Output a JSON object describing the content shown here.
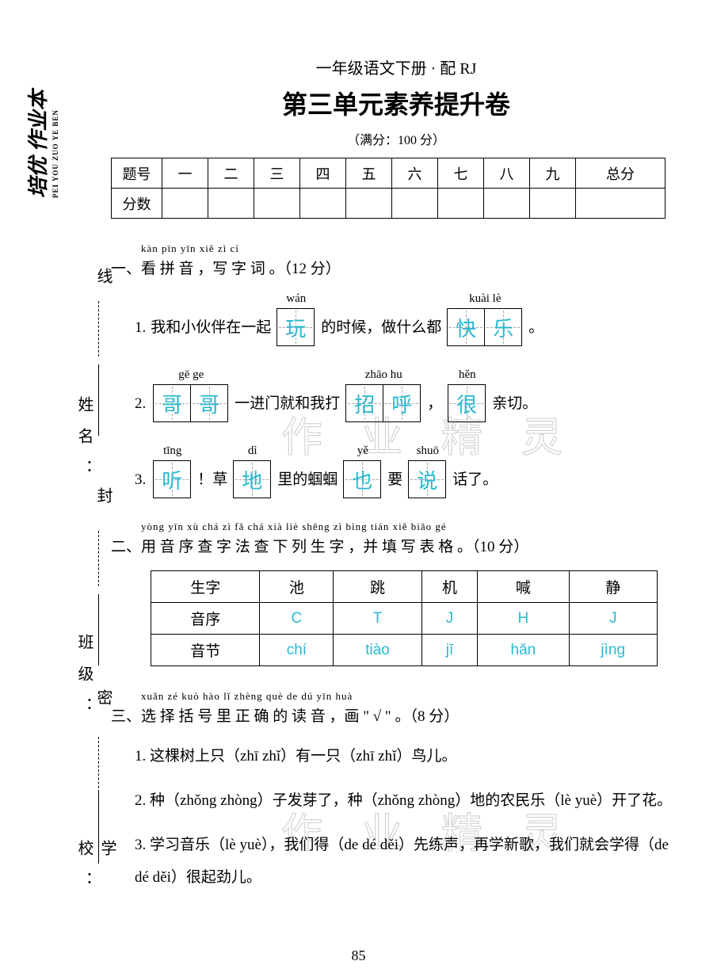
{
  "logo": {
    "main": "培优 作业本",
    "sub": "PEI YOU\nZUO YE BEN"
  },
  "header": {
    "sub": "一年级语文下册 · 配 RJ",
    "title": "第三单元素养提升卷",
    "score": "（满分：100 分）"
  },
  "score_table": {
    "row1": [
      "题号",
      "一",
      "二",
      "三",
      "四",
      "五",
      "六",
      "七",
      "八",
      "九",
      "总分"
    ],
    "row2_label": "分数"
  },
  "side_labels": {
    "school": "学校：",
    "class": "班级：",
    "name": "姓名：",
    "mi": "密",
    "feng": "封",
    "xian": "线"
  },
  "section1": {
    "pinyin": "kàn pīn yīn     xiě  zì  cí",
    "title": "一、看 拼 音 ，写 字 词 。（12 分）",
    "items": [
      {
        "num": "1.",
        "parts": [
          {
            "type": "text",
            "val": "我和小伙伴在一起"
          },
          {
            "type": "box",
            "py": "wán",
            "chars": [
              "玩"
            ]
          },
          {
            "type": "text",
            "val": "的时候，做什么都"
          },
          {
            "type": "box",
            "py": "kuài     lè",
            "chars": [
              "快",
              "乐"
            ]
          },
          {
            "type": "text",
            "val": "。"
          }
        ]
      },
      {
        "num": "2.",
        "parts": [
          {
            "type": "box",
            "py": "gē     ge",
            "chars": [
              "哥",
              "哥"
            ]
          },
          {
            "type": "text",
            "val": "一进门就和我打"
          },
          {
            "type": "box",
            "py": "zhāo   hu",
            "chars": [
              "招",
              "呼"
            ]
          },
          {
            "type": "text",
            "val": "，"
          },
          {
            "type": "box",
            "py": "hěn",
            "chars": [
              "很"
            ]
          },
          {
            "type": "text",
            "val": "亲切。"
          }
        ]
      },
      {
        "num": "3.",
        "parts": [
          {
            "type": "box",
            "py": "tīng",
            "chars": [
              "听"
            ]
          },
          {
            "type": "text",
            "val": "！草"
          },
          {
            "type": "box",
            "py": "dì",
            "chars": [
              "地"
            ]
          },
          {
            "type": "text",
            "val": "里的蝈蝈"
          },
          {
            "type": "box",
            "py": "yě",
            "chars": [
              "也"
            ]
          },
          {
            "type": "text",
            "val": "要"
          },
          {
            "type": "box",
            "py": "shuō",
            "chars": [
              "说"
            ]
          },
          {
            "type": "text",
            "val": "话了。"
          }
        ]
      }
    ]
  },
  "section2": {
    "pinyin": "yòng yīn xù chá  zì  fǎ chá xià liè shēng zì       bìng tián xiě biǎo gé",
    "title": "二、用 音 序 查 字 法 查 下 列   生   字 ，并  填  写 表 格 。（10 分）",
    "table": {
      "rows": [
        [
          "生字",
          "池",
          "跳",
          "机",
          "喊",
          "静"
        ],
        [
          "音序",
          "C",
          "T",
          "J",
          "H",
          "J"
        ],
        [
          "音节",
          "chí",
          "tiào",
          "jī",
          "hǎn",
          "jìng"
        ]
      ],
      "answer_rows": [
        1,
        2
      ],
      "answer_col_start": 1
    }
  },
  "section3": {
    "pinyin": "xuǎn zé kuò hào  lǐ  zhèng què de dú yīn      huà",
    "title": "三、选 择 括 号 里  正   确 的 读 音 ，画 \" √ \" 。（8 分）",
    "items": [
      "1. 这棵树上只（zhī   zhǐ）有一只（zhī   zhǐ）鸟儿。",
      "2. 种（zhǒng   zhòng）子发芽了，种（zhǒng   zhòng）地的农民乐（lè   yuè）开了花。",
      "3. 学习音乐（lè   yuè），我们得（de   dé   děi）先练声，再学新歌，我们就会学得（de   dé   děi）很起劲儿。"
    ]
  },
  "watermark": "作 业 精 灵",
  "page_number": "85",
  "colors": {
    "text": "#000000",
    "answer": "#2ab8d0",
    "watermark": "#dddddd",
    "background": "#ffffff"
  }
}
